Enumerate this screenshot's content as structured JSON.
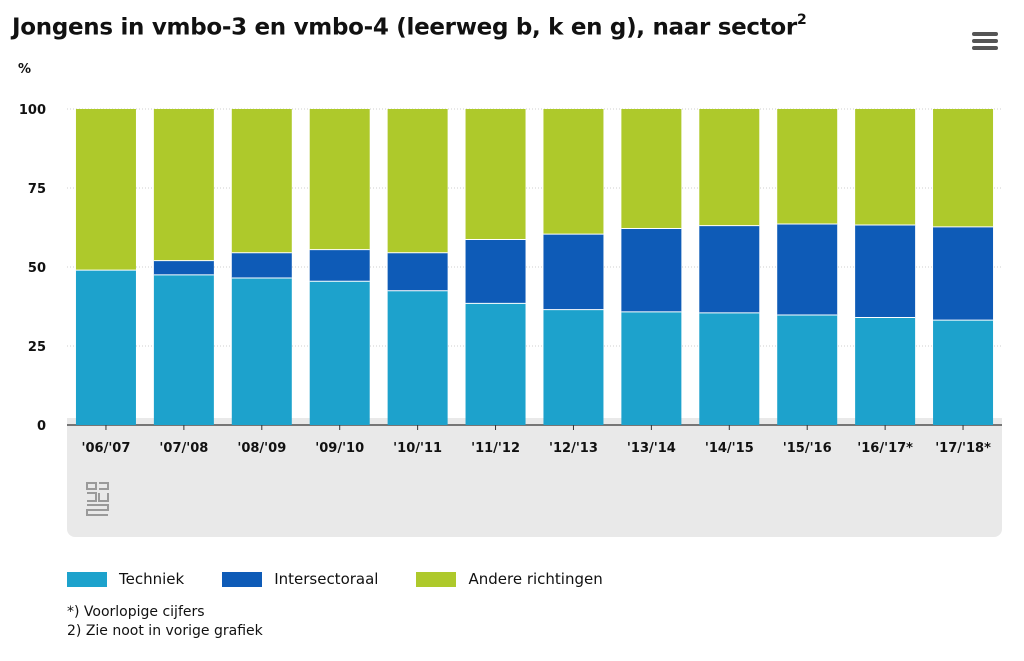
{
  "header": {
    "title": "Jongens in vmbo-3 en vmbo-4 (leerweg b, k en g), naar sector",
    "title_sup": "2",
    "unit": "%"
  },
  "menu": {
    "icon": "hamburger-menu-icon"
  },
  "logo": {
    "icon": "cbs-logo-icon"
  },
  "colors": {
    "techniek": "#1da2cc",
    "intersectoraal": "#0e5bb7",
    "andere": "#aec92b",
    "plot_bg": "#e9e9e9"
  },
  "chart_data": {
    "type": "bar",
    "stacked": true,
    "title": "Jongens in vmbo-3 en vmbo-4 (leerweg b, k en g), naar sector",
    "ylabel": "%",
    "xlabel": "",
    "ylim": [
      0,
      100
    ],
    "yticks": [
      "0",
      "25",
      "50",
      "75",
      "100"
    ],
    "grid": true,
    "legend_position": "bottom",
    "categories": [
      "'06/'07",
      "'07/'08",
      "'08/'09",
      "'09/'10",
      "'10/'11",
      "'11/'12",
      "'12/'13",
      "'13/'14",
      "'14/'15",
      "'15/'16",
      "'16/'17*",
      "'17/'18*"
    ],
    "series": [
      {
        "name": "Techniek",
        "color": "#1da2cc",
        "values": [
          49,
          47.5,
          46.5,
          45.5,
          42.5,
          38.5,
          36.5,
          35.8,
          35.5,
          34.8,
          34,
          33.2
        ]
      },
      {
        "name": "Intersectoraal",
        "color": "#0e5bb7",
        "values": [
          0,
          4.5,
          8,
          10,
          12,
          20.2,
          23.9,
          26.4,
          27.6,
          28.8,
          29.3,
          29.5
        ]
      },
      {
        "name": "Andere richtingen",
        "color": "#aec92b",
        "values": [
          51,
          48,
          45.5,
          44.5,
          45.5,
          41.3,
          39.6,
          37.8,
          36.9,
          36.4,
          36.7,
          37.3
        ]
      }
    ]
  },
  "legend": [
    {
      "label": "Techniek",
      "color": "#1da2cc"
    },
    {
      "label": "Intersectoraal",
      "color": "#0e5bb7"
    },
    {
      "label": "Andere richtingen",
      "color": "#aec92b"
    }
  ],
  "notes": {
    "note1": "*) Voorlopige cijfers",
    "note2": "2) Zie noot in vorige grafiek"
  }
}
